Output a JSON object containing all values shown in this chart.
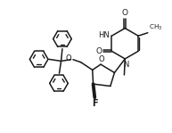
{
  "bg_color": "#ffffff",
  "line_color": "#1a1a1a",
  "lw": 1.1,
  "figsize": [
    1.93,
    1.49
  ],
  "dpi": 100,
  "xlim": [
    -0.5,
    10.5
  ],
  "ylim": [
    -0.3,
    8.3
  ]
}
